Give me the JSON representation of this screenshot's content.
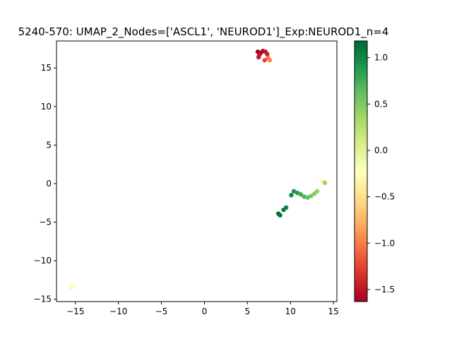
{
  "chart_data": {
    "type": "scatter",
    "title": "5240-570: UMAP_2_Nodes=['ASCL1', 'NEUROD1']_Exp:NEUROD1_n=4",
    "xlabel": "",
    "ylabel": "",
    "xlim": [
      -17.2,
      15.4
    ],
    "ylim": [
      -15.3,
      18.5
    ],
    "x_ticks": [
      -15,
      -10,
      -5,
      0,
      5,
      10,
      15
    ],
    "x_tick_labels": [
      "−15",
      "−10",
      "−5",
      "0",
      "5",
      "10",
      "15"
    ],
    "y_ticks": [
      -15,
      -10,
      -5,
      0,
      5,
      10,
      15
    ],
    "y_tick_labels": [
      "−15",
      "−10",
      "−5",
      "0",
      "5",
      "10",
      "15"
    ],
    "grid": false,
    "colormap": "RdYlGn",
    "colorbar": {
      "min": -1.63,
      "max": 1.18,
      "ticks": [
        -1.5,
        -1.0,
        -0.5,
        0.0,
        0.5,
        1.0
      ],
      "tick_labels": [
        "−1.5",
        "−1.0",
        "−0.5",
        "0.0",
        "0.5",
        "1.0"
      ]
    },
    "points": [
      {
        "x": 6.2,
        "y": 17.1,
        "value": -1.62
      },
      {
        "x": 6.6,
        "y": 17.0,
        "value": -1.58
      },
      {
        "x": 6.8,
        "y": 17.2,
        "value": -1.55
      },
      {
        "x": 7.1,
        "y": 17.1,
        "value": -1.5
      },
      {
        "x": 7.3,
        "y": 16.8,
        "value": -1.45
      },
      {
        "x": 6.4,
        "y": 16.7,
        "value": -1.52
      },
      {
        "x": 6.3,
        "y": 16.4,
        "value": -1.48
      },
      {
        "x": 7.0,
        "y": 16.0,
        "value": -1.25
      },
      {
        "x": 7.4,
        "y": 16.3,
        "value": -1.05
      },
      {
        "x": 7.6,
        "y": 16.0,
        "value": -0.95
      },
      {
        "x": 8.6,
        "y": -3.9,
        "value": 1.15
      },
      {
        "x": 8.8,
        "y": -4.1,
        "value": 1.12
      },
      {
        "x": 9.2,
        "y": -3.4,
        "value": 1.08
      },
      {
        "x": 9.5,
        "y": -3.1,
        "value": 1.02
      },
      {
        "x": 10.1,
        "y": -1.5,
        "value": 0.98
      },
      {
        "x": 10.4,
        "y": -1.0,
        "value": 0.92
      },
      {
        "x": 10.8,
        "y": -1.2,
        "value": 0.85
      },
      {
        "x": 11.2,
        "y": -1.4,
        "value": 0.78
      },
      {
        "x": 11.6,
        "y": -1.7,
        "value": 0.7
      },
      {
        "x": 12.0,
        "y": -1.8,
        "value": 0.62
      },
      {
        "x": 12.4,
        "y": -1.6,
        "value": 0.55
      },
      {
        "x": 12.8,
        "y": -1.3,
        "value": 0.48
      },
      {
        "x": 13.1,
        "y": -1.0,
        "value": 0.42
      },
      {
        "x": 13.7,
        "y": 0.3,
        "value": -0.3
      },
      {
        "x": 14.0,
        "y": 0.1,
        "value": 0.38
      },
      {
        "x": -15.2,
        "y": -13.1,
        "value": -0.22
      },
      {
        "x": -15.5,
        "y": -13.5,
        "value": -0.28
      }
    ]
  }
}
